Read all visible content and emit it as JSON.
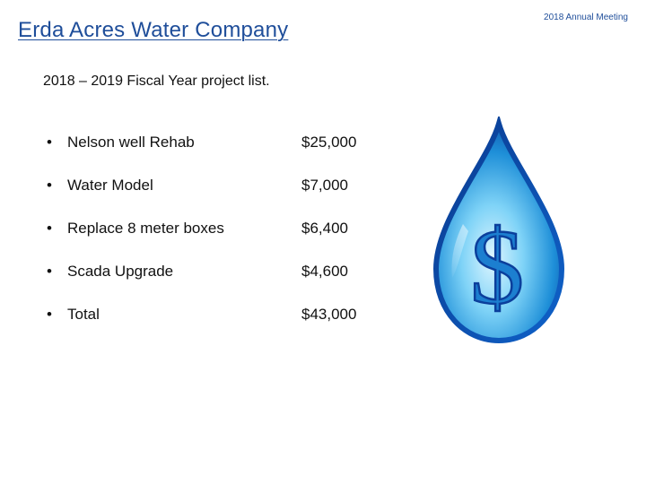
{
  "header": {
    "title": "Erda Acres Water Company",
    "meeting": "2018 Annual Meeting"
  },
  "subtitle": "2018 – 2019 Fiscal Year project list.",
  "bullet": "•",
  "projects": [
    {
      "name": "Nelson well Rehab",
      "amount": "$25,000"
    },
    {
      "name": "Water Model",
      "amount": "$7,000"
    },
    {
      "name": "Replace 8 meter boxes",
      "amount": "$6,400"
    },
    {
      "name": "Scada Upgrade",
      "amount": "$4,600"
    },
    {
      "name": "Total",
      "amount": "$43,000"
    }
  ],
  "graphic": {
    "icon": "water-drop-dollar-icon",
    "symbol": "$"
  }
}
